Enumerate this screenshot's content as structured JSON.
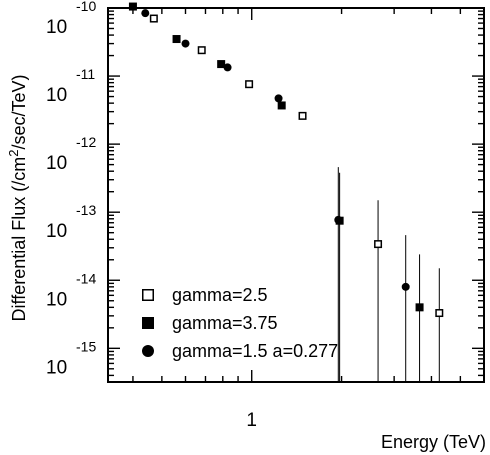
{
  "chart_data": {
    "type": "scatter",
    "title": "",
    "xlabel": "Energy (TeV)",
    "ylabel_parts": {
      "prefix": "Differential Flux (/cm",
      "sup": "2",
      "suffix": "/sec/TeV)"
    },
    "xscale": "log",
    "yscale": "log",
    "xlim": [
      0.33,
      6.0
    ],
    "ylim": [
      3.2e-16,
      1e-10
    ],
    "x_tick_labels": [
      {
        "x": 1,
        "label": "1"
      }
    ],
    "y_tick_labels": [
      {
        "exp": -10,
        "mantissa": "10",
        "power": "-10"
      },
      {
        "exp": -11,
        "mantissa": "10",
        "power": "-11"
      },
      {
        "exp": -12,
        "mantissa": "10",
        "power": "-12"
      },
      {
        "exp": -13,
        "mantissa": "10",
        "power": "-13"
      },
      {
        "exp": -14,
        "mantissa": "10",
        "power": "-14"
      },
      {
        "exp": -15,
        "mantissa": "10",
        "power": "-15"
      }
    ],
    "grid": false,
    "legend_position": "bottom-left",
    "series": [
      {
        "name": "gamma=2.5",
        "marker": "open-square",
        "points": [
          {
            "x": 0.47,
            "y": 7e-11
          },
          {
            "x": 0.68,
            "y": 2.4e-11
          },
          {
            "x": 0.98,
            "y": 7.6e-12
          },
          {
            "x": 1.48,
            "y": 2.6e-12
          },
          {
            "x": 2.65,
            "y": 3.4e-14,
            "yerr_low": 3.1e-16,
            "yerr_high": 1.5e-13
          },
          {
            "x": 4.25,
            "y": 3.3e-15,
            "yerr_low": 3.1e-16,
            "yerr_high": 1.5e-14
          }
        ]
      },
      {
        "name": "gamma=3.75",
        "marker": "filled-square",
        "points": [
          {
            "x": 0.4,
            "y": 1.05e-10
          },
          {
            "x": 0.56,
            "y": 3.5e-11
          },
          {
            "x": 0.79,
            "y": 1.5e-11
          },
          {
            "x": 1.26,
            "y": 3.7e-12
          },
          {
            "x": 1.97,
            "y": 7.5e-14,
            "yerr_low": 3.1e-16,
            "yerr_high": 3.8e-13
          },
          {
            "x": 3.65,
            "y": 4e-15,
            "yerr_low": 3.1e-16,
            "yerr_high": 2.4e-14
          }
        ]
      },
      {
        "name": "gamma=1.5 a=0.277",
        "marker": "filled-circle",
        "points": [
          {
            "x": 0.44,
            "y": 8.4e-11
          },
          {
            "x": 0.6,
            "y": 3e-11
          },
          {
            "x": 0.83,
            "y": 1.34e-11
          },
          {
            "x": 1.23,
            "y": 4.7e-12
          },
          {
            "x": 1.95,
            "y": 7.7e-14,
            "yerr_low": 3.1e-16,
            "yerr_high": 4.6e-13
          },
          {
            "x": 3.28,
            "y": 8e-15,
            "yerr_low": 3.1e-16,
            "yerr_high": 4.6e-14
          }
        ]
      }
    ]
  }
}
